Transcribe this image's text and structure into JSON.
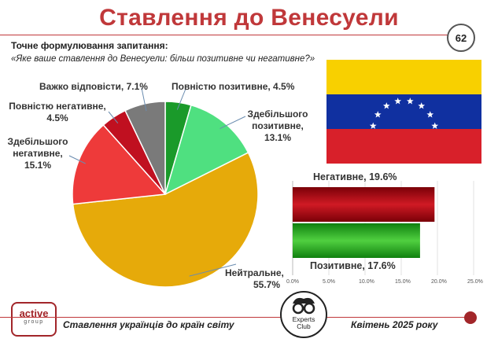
{
  "page": {
    "title": "Ставлення до Венесуели",
    "page_number": "62",
    "question_heading": "Точне формулювання запитання:",
    "question_text": "«Яке ваше ставлення до Венесуели: більш позитивне чи негативне?»",
    "footer_left": "Ставлення українців до країн світу",
    "footer_right": "Квітень 2025 року",
    "logo_active_top": "active",
    "logo_active_bottom": "group",
    "logo_experts_top": "Experts",
    "logo_experts_bottom": "Club"
  },
  "chart_data": [
    {
      "type": "pie",
      "slices": [
        {
          "label": "Повністю позитивне",
          "value": 4.5,
          "text": "Повністю позитивне, 4.5%",
          "color": "#1a9a2a"
        },
        {
          "label": "Здебільшого позитивне",
          "value": 13.1,
          "text_lines": [
            "Здебільшого",
            "позитивне,",
            "13.1%"
          ],
          "color": "#4fe080"
        },
        {
          "label": "Нейтральне",
          "value": 55.7,
          "text_lines": [
            "Нейтральне,",
            "55.7%"
          ],
          "color": "#e6aa0a"
        },
        {
          "label": "Здебільшого негативне",
          "value": 15.1,
          "text_lines": [
            "Здебільшого",
            "негативне,",
            "15.1%"
          ],
          "color": "#ee3a3a"
        },
        {
          "label": "Повністю негативне",
          "value": 4.5,
          "text_lines": [
            "Повністю негативне,",
            "4.5%"
          ],
          "color": "#c01020"
        },
        {
          "label": "Важко відповісти",
          "value": 7.1,
          "text": "Важко відповісти, 7.1%",
          "color": "#7a7a7a"
        }
      ]
    },
    {
      "type": "bar",
      "orientation": "horizontal",
      "series": [
        {
          "name": "Негативне",
          "value": 19.6,
          "text": "Негативне, 19.6%",
          "color": "#b0101a"
        },
        {
          "name": "Позитивне",
          "value": 17.6,
          "text": "Позитивне, 17.6%",
          "color": "#20a020"
        }
      ],
      "xlim": [
        0,
        25
      ],
      "ticks": [
        "0.0%",
        "5.0%",
        "10.0%",
        "15.0%",
        "20.0%",
        "25.0%"
      ]
    }
  ],
  "flag": {
    "stripe_colors": [
      "#f8d000",
      "#1030a0",
      "#d8202a"
    ],
    "star_count": 8,
    "star_color": "#ffffff"
  }
}
